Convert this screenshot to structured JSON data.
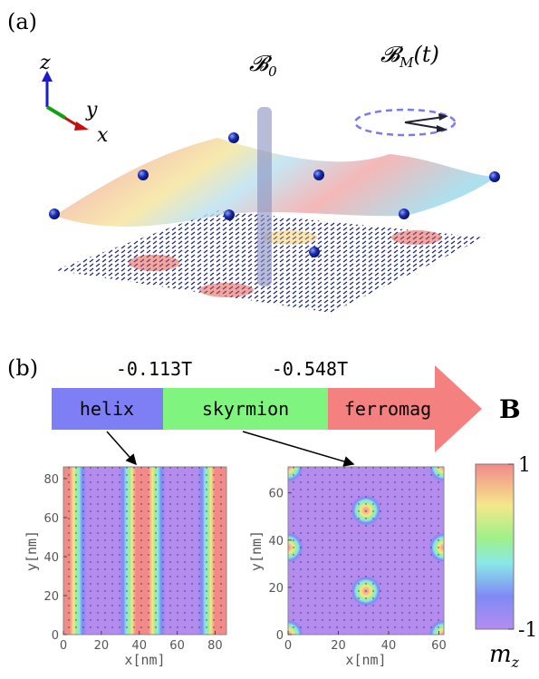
{
  "panel_a": {
    "label": "(a)",
    "axes": {
      "z": "z",
      "y": "y",
      "x": "x"
    },
    "static_field": {
      "symbol": "𝓑",
      "subscript": "0"
    },
    "driving_field": {
      "symbol": "𝓑",
      "subscript": "M",
      "suffix": "(t)"
    }
  },
  "panel_b": {
    "label": "(b)",
    "transitions": [
      "-0.113T",
      "-0.548T"
    ],
    "phases": [
      "helix",
      "skyrmion",
      "ferromag"
    ],
    "field_label": "B",
    "plots": [
      {
        "xlabel": "x[nm]",
        "ylabel": "y[nm]",
        "xlim": [
          0,
          86
        ],
        "ylim": [
          0,
          86
        ],
        "xticks": [
          0,
          20,
          40,
          60,
          80
        ],
        "yticks": [
          0,
          20,
          40,
          60,
          80
        ]
      },
      {
        "xlabel": "x[nm]",
        "ylabel": "y[nm]",
        "xlim": [
          0,
          62
        ],
        "ylim": [
          0,
          71
        ],
        "xticks": [
          0,
          20,
          40,
          60
        ],
        "yticks": [
          0,
          20,
          40,
          60
        ]
      }
    ],
    "colorbar": {
      "lim": [
        -1,
        1
      ],
      "ticks": [
        1,
        -1
      ],
      "label": {
        "symbol": "m",
        "subscript": "z"
      }
    }
  }
}
